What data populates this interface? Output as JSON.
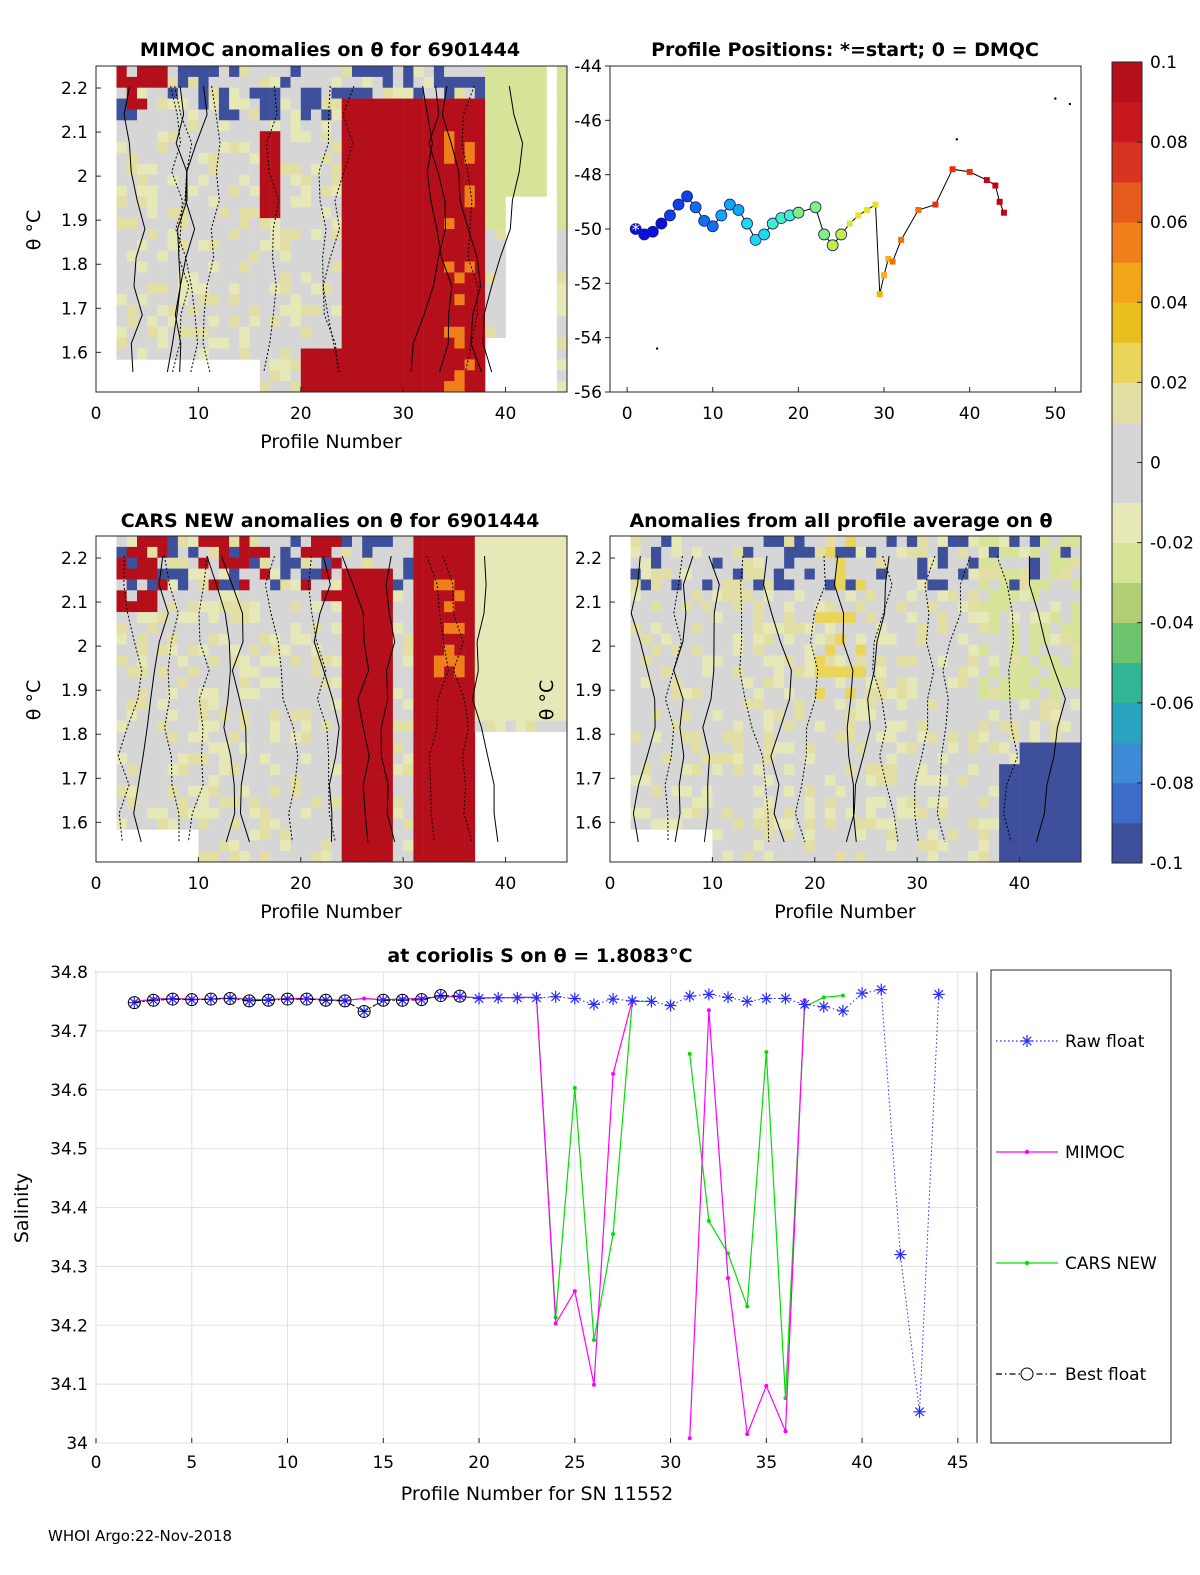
{
  "chart_data": [
    {
      "type": "heatmap",
      "title": "MIMOC anomalies on θ  for 6901444",
      "xlabel": "Profile Number",
      "ylabel": "θ °C",
      "xlim": [
        0,
        46
      ],
      "ylim": [
        1.51,
        2.25
      ],
      "xticks": [
        "0",
        "10",
        "20",
        "30",
        "40"
      ],
      "yticks": [
        "1.6",
        "1.7",
        "1.8",
        "1.9",
        "2",
        "2.1",
        "2.2"
      ],
      "color_limits": [
        -0.1,
        0.1
      ]
    },
    {
      "type": "line",
      "title": "Profile Positions: *=start; 0 = DMQC",
      "xlim": [
        -2,
        53
      ],
      "ylim": [
        -56,
        -44
      ],
      "xticks": [
        "0",
        "10",
        "20",
        "30",
        "40",
        "50"
      ],
      "yticks": [
        "-44",
        "-46",
        "-48",
        "-50",
        "-52",
        "-54",
        "-56"
      ],
      "points": [
        [
          1,
          -50
        ],
        [
          2,
          -50.2
        ],
        [
          3,
          -50.1
        ],
        [
          4,
          -49.8
        ],
        [
          5,
          -49.5
        ],
        [
          6,
          -49.1
        ],
        [
          7,
          -48.8
        ],
        [
          8,
          -49.2
        ],
        [
          9,
          -49.7
        ],
        [
          10,
          -49.9
        ],
        [
          11,
          -49.5
        ],
        [
          12,
          -49.1
        ],
        [
          13,
          -49.3
        ],
        [
          14,
          -49.8
        ],
        [
          15,
          -50.4
        ],
        [
          16,
          -50.2
        ],
        [
          17,
          -49.8
        ],
        [
          18,
          -49.6
        ],
        [
          19,
          -49.5
        ],
        [
          20,
          -49.4
        ],
        [
          22,
          -49.2
        ],
        [
          23,
          -50.2
        ],
        [
          24,
          -50.6
        ],
        [
          25,
          -50.2
        ],
        [
          26,
          -49.8
        ],
        [
          27,
          -49.5
        ],
        [
          28,
          -49.3
        ],
        [
          29,
          -49.1
        ],
        [
          29.5,
          -52.4
        ],
        [
          30,
          -51.7
        ],
        [
          30.5,
          -51.1
        ],
        [
          31,
          -51.2
        ],
        [
          32,
          -50.4
        ],
        [
          34,
          -49.3
        ],
        [
          36,
          -49.1
        ],
        [
          38,
          -47.8
        ],
        [
          40,
          -47.9
        ],
        [
          42,
          -48.2
        ],
        [
          43,
          -48.4
        ],
        [
          43.5,
          -49.0
        ],
        [
          44,
          -49.4
        ]
      ]
    },
    {
      "type": "heatmap",
      "title": "CARS NEW anomalies on θ for 6901444",
      "xlabel": "Profile Number",
      "ylabel": "θ °C",
      "xlim": [
        0,
        46
      ],
      "ylim": [
        1.51,
        2.25
      ],
      "xticks": [
        "0",
        "10",
        "20",
        "30",
        "40"
      ],
      "yticks": [
        "1.6",
        "1.7",
        "1.8",
        "1.9",
        "2",
        "2.1",
        "2.2"
      ]
    },
    {
      "type": "heatmap",
      "title": "Anomalies from all profile average on θ",
      "xlabel": "Profile Number",
      "ylabel": "θ °C",
      "xlim": [
        0,
        46
      ],
      "ylim": [
        1.51,
        2.25
      ],
      "xticks": [
        "0",
        "10",
        "20",
        "30",
        "40"
      ],
      "yticks": [
        "1.6",
        "1.7",
        "1.8",
        "1.9",
        "2",
        "2.1",
        "2.2"
      ]
    },
    {
      "type": "colorbar",
      "ticks": [
        "0.1",
        "0.08",
        "0.06",
        "0.04",
        "0.02",
        "0",
        "-0.02",
        "-0.04",
        "-0.06",
        "-0.08",
        "-0.1"
      ],
      "range": [
        -0.1,
        0.1
      ]
    },
    {
      "type": "line",
      "title": "at coriolis S on θ = 1.8083°C",
      "xlabel": "Profile Number for SN 11552",
      "ylabel": "Salinity",
      "xlim": [
        0,
        46
      ],
      "ylim": [
        34,
        34.8
      ],
      "xticks": [
        "0",
        "5",
        "10",
        "15",
        "20",
        "25",
        "30",
        "35",
        "40",
        "45"
      ],
      "yticks": [
        "34",
        "34.1",
        "34.2",
        "34.3",
        "34.4",
        "34.5",
        "34.6",
        "34.7",
        "34.8"
      ],
      "series": [
        {
          "name": "Raw float",
          "color": "#2a2aff",
          "x": [
            2,
            3,
            4,
            5,
            6,
            7,
            8,
            9,
            10,
            11,
            12,
            13,
            14,
            15,
            16,
            17,
            18,
            19,
            20,
            21,
            22,
            23,
            24,
            25,
            26,
            27,
            28,
            29,
            30,
            31,
            32,
            33,
            34,
            35,
            36,
            37,
            38,
            39,
            40,
            41,
            42,
            43,
            44
          ],
          "y": [
            34.748,
            34.752,
            34.754,
            34.753,
            34.754,
            34.755,
            34.751,
            34.752,
            34.754,
            34.754,
            34.752,
            34.751,
            34.733,
            34.752,
            34.752,
            34.753,
            34.76,
            34.759,
            34.755,
            34.756,
            34.756,
            34.756,
            34.758,
            34.755,
            34.745,
            34.754,
            34.751,
            34.75,
            34.743,
            34.759,
            34.762,
            34.757,
            34.75,
            34.755,
            34.755,
            34.745,
            34.741,
            34.734,
            34.764,
            34.77,
            34.32,
            34.053,
            34.762
          ]
        },
        {
          "name": "MIMOC",
          "color": "#ff00ff",
          "x": [
            2,
            3,
            4,
            5,
            6,
            7,
            8,
            9,
            10,
            11,
            12,
            13,
            14,
            15,
            16,
            17,
            18,
            19,
            20,
            21,
            22,
            23,
            24,
            25,
            26,
            27,
            28,
            null,
            31,
            32,
            33,
            34,
            35,
            36,
            37
          ],
          "y": [
            34.749,
            34.754,
            34.755,
            34.754,
            34.754,
            34.756,
            34.753,
            34.753,
            34.755,
            34.755,
            34.753,
            34.752,
            34.755,
            34.753,
            34.754,
            34.755,
            34.758,
            34.758,
            34.756,
            34.756,
            34.757,
            34.757,
            34.203,
            34.258,
            34.099,
            34.627,
            34.752,
            null,
            34.008,
            34.735,
            34.28,
            34.015,
            34.097,
            34.02,
            34.752
          ]
        },
        {
          "name": "CARS NEW",
          "color": "#00e000",
          "x": [
            2,
            3,
            4,
            5,
            6,
            7,
            8,
            9,
            10,
            11,
            12,
            13,
            14,
            15,
            16,
            17,
            18,
            19,
            20,
            21,
            22,
            23,
            24,
            25,
            26,
            27,
            28,
            29,
            null,
            31,
            32,
            33,
            34,
            35,
            36,
            37,
            38,
            39
          ],
          "y": [
            34.749,
            34.754,
            34.755,
            34.754,
            34.754,
            34.756,
            34.754,
            34.753,
            34.755,
            34.755,
            34.753,
            34.752,
            34.755,
            34.753,
            34.754,
            34.755,
            34.758,
            34.758,
            34.756,
            34.756,
            34.757,
            34.757,
            34.213,
            34.603,
            34.175,
            34.355,
            34.75,
            34.75,
            null,
            34.661,
            34.377,
            34.322,
            34.232,
            34.664,
            34.076,
            34.741,
            34.757,
            34.76
          ]
        },
        {
          "name": "Best float",
          "color": "#000000",
          "x": [
            2,
            3,
            4,
            5,
            6,
            7,
            8,
            9,
            10,
            11,
            12,
            13,
            14,
            15,
            16,
            17,
            18,
            19
          ],
          "y": [
            34.748,
            34.752,
            34.754,
            34.753,
            34.754,
            34.755,
            34.751,
            34.752,
            34.754,
            34.754,
            34.752,
            34.751,
            34.733,
            34.752,
            34.752,
            34.753,
            34.76,
            34.759
          ]
        }
      ],
      "legend_position": "right"
    }
  ],
  "footer": "WHOI Argo:22-Nov-2018"
}
